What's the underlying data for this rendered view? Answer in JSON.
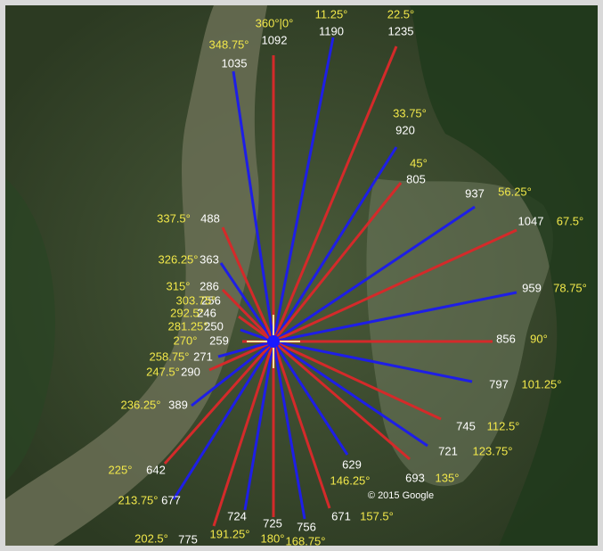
{
  "rays": [
    {
      "angle": "360°|0°",
      "distance": 1092
    },
    {
      "angle": "11.25°",
      "distance": 1190
    },
    {
      "angle": "22.5°",
      "distance": 1235
    },
    {
      "angle": "33.75°",
      "distance": 920
    },
    {
      "angle": "45°",
      "distance": 805
    },
    {
      "angle": "56.25°",
      "distance": 937
    },
    {
      "angle": "67.5°",
      "distance": 1047
    },
    {
      "angle": "78.75°",
      "distance": 959
    },
    {
      "angle": "90°",
      "distance": 856
    },
    {
      "angle": "101.25°",
      "distance": 797
    },
    {
      "angle": "112.5°",
      "distance": 745
    },
    {
      "angle": "123.75°",
      "distance": 721
    },
    {
      "angle": "135°",
      "distance": 693
    },
    {
      "angle": "146.25°",
      "distance": 629
    },
    {
      "angle": "157.5°",
      "distance": 671
    },
    {
      "angle": "168.75°",
      "distance": 756
    },
    {
      "angle": "180°",
      "distance": 725
    },
    {
      "angle": "191.25°",
      "distance": 724
    },
    {
      "angle": "202.5°",
      "distance": 775
    },
    {
      "angle": "213.75°",
      "distance": 677
    },
    {
      "angle": "225°",
      "distance": 642
    },
    {
      "angle": "236.25°",
      "distance": 389
    },
    {
      "angle": "247.5°",
      "distance": 290
    },
    {
      "angle": "258.75°",
      "distance": 271
    },
    {
      "angle": "270°",
      "distance": 259
    },
    {
      "angle": "281.25°",
      "distance": 250
    },
    {
      "angle": "292.5°",
      "distance": 246
    },
    {
      "angle": "303.75°",
      "distance": 256
    },
    {
      "angle": "315°",
      "distance": 286
    },
    {
      "angle": "326.25°",
      "distance": 363
    },
    {
      "angle": "337.5°",
      "distance": 488
    },
    {
      "angle": "348.75°",
      "distance": 1035
    }
  ],
  "attribution": "© 2015 Google"
}
